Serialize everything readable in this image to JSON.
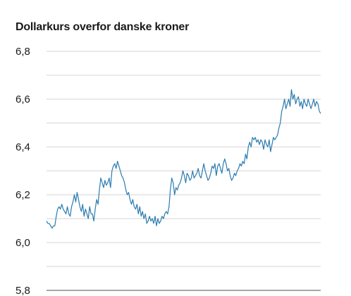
{
  "chart_data": {
    "type": "line",
    "title": "Dollarkurs overfor danske kroner",
    "xlabel": "",
    "ylabel": "",
    "ylim": [
      5.8,
      6.8
    ],
    "y_ticks": [
      "6,8",
      "6,6",
      "6,4",
      "6,2",
      "6,0",
      "5,8"
    ],
    "y_tick_values": [
      6.8,
      6.6,
      6.4,
      6.2,
      6.0,
      5.8
    ],
    "grid": true,
    "series": [
      {
        "color": "#2b7bb0",
        "values": [
          6.09,
          6.08,
          6.08,
          6.07,
          6.06,
          6.07,
          6.07,
          6.11,
          6.14,
          6.15,
          6.14,
          6.16,
          6.14,
          6.13,
          6.12,
          6.15,
          6.12,
          6.11,
          6.15,
          6.17,
          6.2,
          6.17,
          6.21,
          6.18,
          6.15,
          6.13,
          6.16,
          6.11,
          6.14,
          6.12,
          6.1,
          6.15,
          6.12,
          6.12,
          6.09,
          6.14,
          6.18,
          6.16,
          6.22,
          6.27,
          6.25,
          6.23,
          6.26,
          6.24,
          6.25,
          6.27,
          6.23,
          6.3,
          6.32,
          6.33,
          6.31,
          6.34,
          6.32,
          6.3,
          6.28,
          6.27,
          6.25,
          6.22,
          6.2,
          6.21,
          6.18,
          6.16,
          6.18,
          6.15,
          6.14,
          6.16,
          6.12,
          6.15,
          6.11,
          6.13,
          6.1,
          6.12,
          6.08,
          6.09,
          6.11,
          6.09,
          6.1,
          6.08,
          6.11,
          6.07,
          6.1,
          6.08,
          6.09,
          6.11,
          6.1,
          6.12,
          6.13,
          6.12,
          6.15,
          6.22,
          6.27,
          6.25,
          6.2,
          6.23,
          6.22,
          6.24,
          6.25,
          6.27,
          6.3,
          6.28,
          6.25,
          6.29,
          6.28,
          6.26,
          6.27,
          6.3,
          6.27,
          6.28,
          6.29,
          6.31,
          6.28,
          6.27,
          6.3,
          6.33,
          6.3,
          6.28,
          6.26,
          6.27,
          6.29,
          6.32,
          6.31,
          6.33,
          6.28,
          6.32,
          6.33,
          6.31,
          6.29,
          6.33,
          6.35,
          6.33,
          6.3,
          6.31,
          6.28,
          6.26,
          6.27,
          6.29,
          6.28,
          6.3,
          6.31,
          6.33,
          6.32,
          6.34,
          6.33,
          6.37,
          6.35,
          6.4,
          6.42,
          6.4,
          6.44,
          6.43,
          6.44,
          6.42,
          6.43,
          6.41,
          6.43,
          6.42,
          6.39,
          6.43,
          6.41,
          6.4,
          6.43,
          6.38,
          6.41,
          6.44,
          6.43,
          6.44,
          6.45,
          6.48,
          6.5,
          6.55,
          6.57,
          6.6,
          6.56,
          6.58,
          6.6,
          6.57,
          6.64,
          6.6,
          6.62,
          6.58,
          6.6,
          6.61,
          6.57,
          6.59,
          6.56,
          6.6,
          6.58,
          6.57,
          6.6,
          6.58,
          6.56,
          6.58,
          6.6,
          6.57,
          6.59,
          6.58,
          6.55,
          6.54
        ]
      }
    ]
  }
}
